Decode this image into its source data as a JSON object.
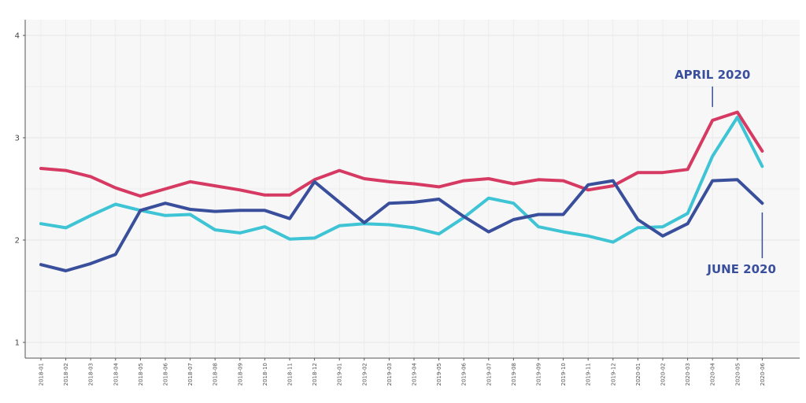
{
  "chart_data": {
    "type": "line",
    "title": "",
    "xlabel": "",
    "ylabel": "",
    "ylim": [
      1,
      4
    ],
    "y_ticks": [
      "1",
      "2",
      "3",
      "4"
    ],
    "grid": true,
    "categories": [
      "2018-01",
      "2018-02",
      "2018-03",
      "2018-04",
      "2018-05",
      "2018-06",
      "2018-07",
      "2018-08",
      "2018-09",
      "2018-10",
      "2018-11",
      "2018-12",
      "2019-01",
      "2019-02",
      "2019-03",
      "2019-04",
      "2019-05",
      "2019-06",
      "2019-07",
      "2019-08",
      "2019-09",
      "2019-10",
      "2019-11",
      "2019-12",
      "2020-01",
      "2020-02",
      "2020-03",
      "2020-04",
      "2020-05",
      "2020-06"
    ],
    "series": [
      {
        "name": "series-red",
        "color": "#d63a63",
        "values": [
          2.7,
          2.68,
          2.62,
          2.51,
          2.43,
          2.5,
          2.57,
          2.53,
          2.49,
          2.44,
          2.44,
          2.59,
          2.68,
          2.6,
          2.57,
          2.55,
          2.52,
          2.58,
          2.6,
          2.55,
          2.59,
          2.58,
          2.49,
          2.53,
          2.66,
          2.66,
          2.69,
          3.17,
          3.25,
          2.87
        ]
      },
      {
        "name": "series-cyan",
        "color": "#3ec4d4",
        "values": [
          2.16,
          2.12,
          2.24,
          2.35,
          2.29,
          2.24,
          2.25,
          2.1,
          2.07,
          2.13,
          2.01,
          2.02,
          2.14,
          2.16,
          2.15,
          2.12,
          2.06,
          2.22,
          2.41,
          2.36,
          2.13,
          2.08,
          2.04,
          1.98,
          2.12,
          2.13,
          2.26,
          2.82,
          3.2,
          2.72
        ]
      },
      {
        "name": "series-navy",
        "color": "#3a4f9c",
        "values": [
          1.76,
          1.7,
          1.77,
          1.86,
          2.29,
          2.36,
          2.3,
          2.28,
          2.29,
          2.29,
          2.21,
          2.57,
          2.37,
          2.17,
          2.36,
          2.37,
          2.4,
          2.23,
          2.08,
          2.2,
          2.25,
          2.25,
          2.54,
          2.58,
          2.2,
          2.04,
          2.16,
          2.58,
          2.59,
          2.36
        ]
      }
    ],
    "annotations": [
      {
        "text": "APRIL 2020",
        "color": "#3a4f9c",
        "category": "2020-04",
        "value": 3.27,
        "position": "above"
      },
      {
        "text": "JUNE 2020",
        "color": "#3a4f9c",
        "category": "2020-06",
        "value": 2.3,
        "position": "below"
      }
    ]
  }
}
